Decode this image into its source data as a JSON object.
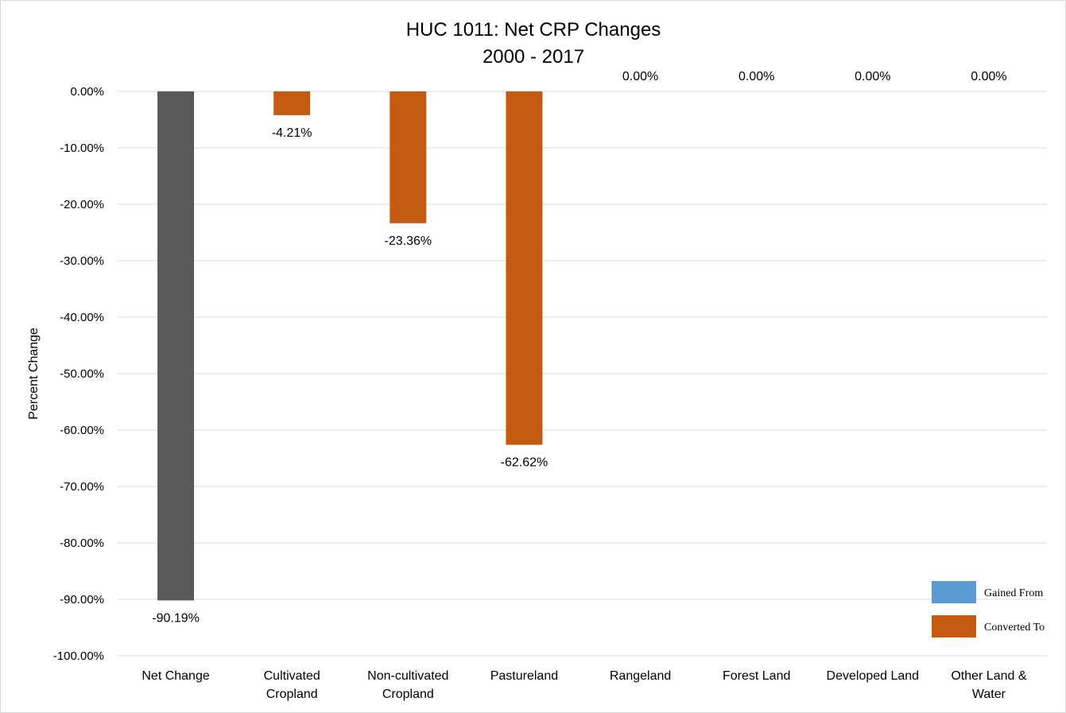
{
  "chart_data": {
    "type": "bar",
    "title": [
      "HUC 1011: Net CRP Changes",
      "2000 - 2017"
    ],
    "ylabel": "Percent Change",
    "xlabel": "",
    "ylim": [
      -100,
      0
    ],
    "ytick_values": [
      0,
      -10,
      -20,
      -30,
      -40,
      -50,
      -60,
      -70,
      -80,
      -90,
      -100
    ],
    "ytick_labels": [
      "0.00%",
      "-10.00%",
      "-20.00%",
      "-30.00%",
      "-40.00%",
      "-50.00%",
      "-60.00%",
      "-70.00%",
      "-80.00%",
      "-90.00%",
      "-100.00%"
    ],
    "grid": true,
    "legend_position": "bottom-right",
    "categories": [
      [
        "Net Change"
      ],
      [
        "Cultivated",
        "Cropland"
      ],
      [
        "Non-cultivated",
        "Cropland"
      ],
      [
        "Pastureland"
      ],
      [
        "Rangeland"
      ],
      [
        "Forest Land"
      ],
      [
        "Developed Land"
      ],
      [
        "Other Land &",
        "Water"
      ]
    ],
    "values": [
      -90.19,
      -4.21,
      -23.36,
      -62.62,
      0,
      0,
      0,
      0
    ],
    "data_labels": [
      "-90.19%",
      "-4.21%",
      "-23.36%",
      "-62.62%",
      "0.00%",
      "0.00%",
      "0.00%",
      "0.00%"
    ],
    "net_color": "#595959",
    "series": [
      {
        "name": "Gained From",
        "color": "#5b9bd5"
      },
      {
        "name": "Converted To",
        "color": "#c55a11"
      }
    ]
  }
}
